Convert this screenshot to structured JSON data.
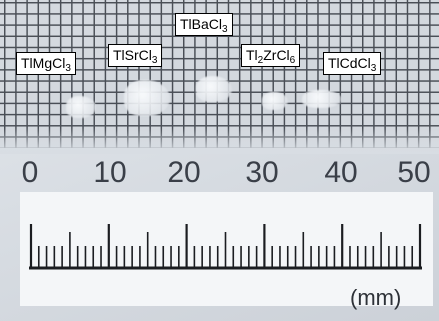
{
  "labels": {
    "tlmgcl3": {
      "base": "TlMgCl",
      "sub": "3"
    },
    "tlsrcl3": {
      "base": "TlSrCl",
      "sub": "3"
    },
    "tlbacl3": {
      "base": "TlBaCl",
      "sub": "3"
    },
    "tl2zrcl6": {
      "pre": "Tl",
      "sub1": "2",
      "mid": "ZrCl",
      "sub2": "6"
    },
    "tlcdcl3": {
      "base": "TlCdCl",
      "sub": "3"
    }
  },
  "ruler": {
    "numbers": [
      "0",
      "10",
      "20",
      "30",
      "40",
      "50"
    ],
    "unit": "(mm)",
    "range_mm": [
      0,
      50
    ]
  }
}
